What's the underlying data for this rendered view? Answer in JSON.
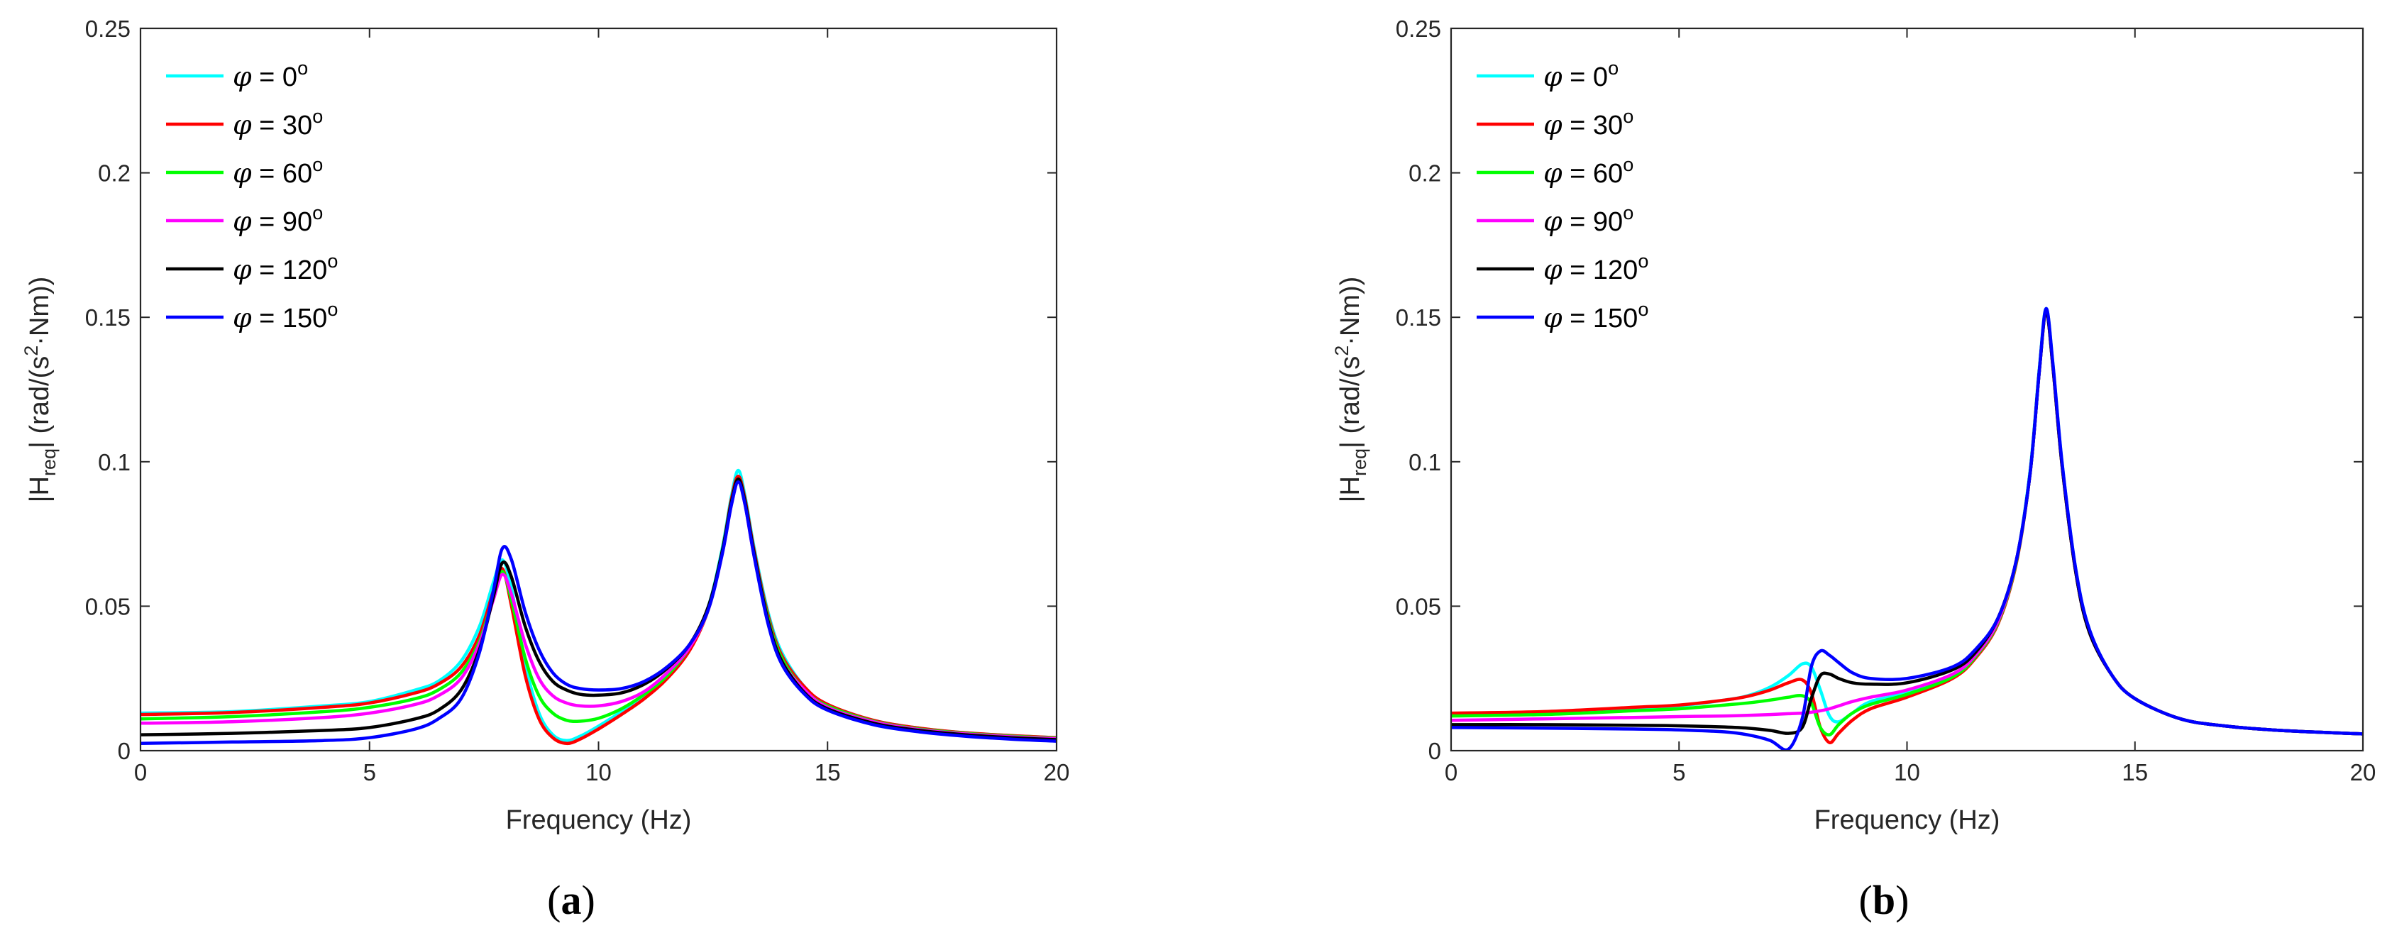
{
  "chart_data": [
    {
      "type": "line",
      "panel_label": {
        "open": "(",
        "letter": "a",
        "close": ")"
      },
      "xlabel": "Frequency (Hz)",
      "ylabel": {
        "prefix": "|H",
        "sub": "req",
        "mid": "| (rad/(s",
        "sup": "2",
        "suffix": "·Nm))"
      },
      "xlim": [
        0,
        20
      ],
      "ylim": [
        0,
        0.25
      ],
      "xticks": [
        0,
        5,
        10,
        15,
        20
      ],
      "yticks": [
        0,
        0.05,
        0.1,
        0.15,
        0.2,
        0.25
      ],
      "xtick_labels": [
        "0",
        "5",
        "10",
        "15",
        "20"
      ],
      "ytick_labels": [
        "0",
        "0.05",
        "0.1",
        "0.15",
        "0.2",
        "0.25"
      ],
      "legend_location": "top-left",
      "grid": false,
      "series": [
        {
          "name": "0",
          "symbol": "φ",
          "text": " = 0",
          "unit": "o",
          "color": "#00FFFF",
          "x": [
            0,
            2,
            4,
            5,
            6,
            6.5,
            7,
            7.4,
            7.7,
            7.9,
            8.1,
            8.4,
            8.7,
            9.0,
            9.3,
            9.6,
            10,
            10.5,
            11,
            11.5,
            12,
            12.4,
            12.7,
            12.9,
            13.05,
            13.2,
            13.4,
            13.7,
            14,
            14.5,
            15,
            16,
            17,
            18,
            19,
            20
          ],
          "y": [
            0.013,
            0.0135,
            0.0155,
            0.017,
            0.021,
            0.024,
            0.031,
            0.043,
            0.058,
            0.066,
            0.056,
            0.03,
            0.013,
            0.0055,
            0.0035,
            0.005,
            0.0085,
            0.0135,
            0.019,
            0.026,
            0.036,
            0.05,
            0.07,
            0.088,
            0.097,
            0.088,
            0.07,
            0.048,
            0.034,
            0.022,
            0.016,
            0.0105,
            0.0078,
            0.0062,
            0.0052,
            0.0045
          ]
        },
        {
          "name": "30",
          "symbol": "φ",
          "text": " = 30",
          "unit": "o",
          "color": "#FF0000",
          "x": [
            0,
            2,
            4,
            5,
            6,
            6.5,
            7,
            7.4,
            7.7,
            7.9,
            8.1,
            8.4,
            8.7,
            9.0,
            9.3,
            9.6,
            10,
            10.5,
            11,
            11.5,
            12,
            12.4,
            12.7,
            12.9,
            13.05,
            13.2,
            13.4,
            13.7,
            14,
            14.5,
            15,
            16,
            17,
            18,
            19,
            20
          ],
          "y": [
            0.0125,
            0.0132,
            0.015,
            0.0165,
            0.02,
            0.023,
            0.029,
            0.04,
            0.055,
            0.063,
            0.05,
            0.026,
            0.011,
            0.0045,
            0.0025,
            0.004,
            0.0075,
            0.0125,
            0.018,
            0.025,
            0.035,
            0.049,
            0.069,
            0.087,
            0.095,
            0.087,
            0.069,
            0.047,
            0.033,
            0.022,
            0.016,
            0.0105,
            0.0078,
            0.0062,
            0.0052,
            0.0045
          ]
        },
        {
          "name": "60",
          "symbol": "φ",
          "text": " = 60",
          "unit": "o",
          "color": "#00FF00",
          "x": [
            0,
            2,
            4,
            5,
            6,
            6.5,
            7,
            7.4,
            7.7,
            7.9,
            8.1,
            8.4,
            8.7,
            9.0,
            9.3,
            9.6,
            10,
            10.5,
            11,
            11.5,
            12,
            12.4,
            12.7,
            12.9,
            13.05,
            13.2,
            13.4,
            13.7,
            14,
            14.5,
            15,
            16,
            17,
            18,
            19,
            20
          ],
          "y": [
            0.011,
            0.0118,
            0.0135,
            0.015,
            0.018,
            0.021,
            0.027,
            0.038,
            0.053,
            0.062,
            0.052,
            0.032,
            0.019,
            0.013,
            0.0105,
            0.0102,
            0.0112,
            0.0145,
            0.0195,
            0.026,
            0.036,
            0.049,
            0.069,
            0.086,
            0.094,
            0.086,
            0.068,
            0.046,
            0.032,
            0.021,
            0.0155,
            0.0102,
            0.0075,
            0.006,
            0.005,
            0.0043
          ]
        },
        {
          "name": "90",
          "symbol": "φ",
          "text": " = 90",
          "unit": "o",
          "color": "#FF00FF",
          "x": [
            0,
            2,
            4,
            5,
            6,
            6.5,
            7,
            7.4,
            7.7,
            7.9,
            8.1,
            8.4,
            8.7,
            9.0,
            9.3,
            9.6,
            10,
            10.5,
            11,
            11.5,
            12,
            12.4,
            12.7,
            12.9,
            13.05,
            13.2,
            13.4,
            13.7,
            14,
            14.5,
            15,
            16,
            17,
            18,
            19,
            20
          ],
          "y": [
            0.0095,
            0.01,
            0.0115,
            0.013,
            0.016,
            0.019,
            0.025,
            0.037,
            0.052,
            0.061,
            0.054,
            0.037,
            0.025,
            0.019,
            0.0165,
            0.0155,
            0.0155,
            0.017,
            0.0205,
            0.027,
            0.036,
            0.049,
            0.068,
            0.085,
            0.093,
            0.085,
            0.067,
            0.045,
            0.031,
            0.021,
            0.015,
            0.01,
            0.0073,
            0.0058,
            0.0048,
            0.0041
          ]
        },
        {
          "name": "120",
          "symbol": "φ",
          "text": " = 120",
          "unit": "o",
          "color": "#000000",
          "x": [
            0,
            2,
            4,
            5,
            6,
            6.5,
            7,
            7.4,
            7.7,
            7.9,
            8.1,
            8.4,
            8.7,
            9.0,
            9.3,
            9.6,
            10,
            10.5,
            11,
            11.5,
            12,
            12.4,
            12.7,
            12.9,
            13.05,
            13.2,
            13.4,
            13.7,
            14,
            14.5,
            15,
            16,
            17,
            18,
            19,
            20
          ],
          "y": [
            0.0055,
            0.006,
            0.007,
            0.008,
            0.011,
            0.014,
            0.021,
            0.035,
            0.053,
            0.065,
            0.06,
            0.043,
            0.031,
            0.024,
            0.021,
            0.0195,
            0.0192,
            0.02,
            0.023,
            0.0285,
            0.037,
            0.05,
            0.069,
            0.086,
            0.094,
            0.086,
            0.068,
            0.045,
            0.031,
            0.02,
            0.0145,
            0.0095,
            0.007,
            0.0055,
            0.0045,
            0.0038
          ]
        },
        {
          "name": "150",
          "symbol": "φ",
          "text": " = 150",
          "unit": "o",
          "color": "#0000FF",
          "x": [
            0,
            2,
            4,
            5,
            6,
            6.5,
            7,
            7.4,
            7.7,
            7.9,
            8.1,
            8.4,
            8.7,
            9.0,
            9.3,
            9.6,
            10,
            10.5,
            11,
            11.5,
            12,
            12.4,
            12.7,
            12.9,
            13.05,
            13.2,
            13.4,
            13.7,
            14,
            14.5,
            15,
            16,
            17,
            18,
            19,
            20
          ],
          "y": [
            0.0025,
            0.003,
            0.0035,
            0.0045,
            0.0075,
            0.011,
            0.018,
            0.034,
            0.055,
            0.07,
            0.066,
            0.048,
            0.035,
            0.027,
            0.023,
            0.0215,
            0.021,
            0.0215,
            0.024,
            0.029,
            0.037,
            0.049,
            0.068,
            0.085,
            0.093,
            0.085,
            0.067,
            0.044,
            0.03,
            0.0195,
            0.014,
            0.009,
            0.0065,
            0.005,
            0.004,
            0.0033
          ]
        }
      ]
    },
    {
      "type": "line",
      "panel_label": {
        "open": "(",
        "letter": "b",
        "close": ")"
      },
      "xlabel": "Frequency (Hz)",
      "ylabel": {
        "prefix": "|H",
        "sub": "req",
        "mid": "| (rad/(s",
        "sup": "2",
        "suffix": "·Nm))"
      },
      "xlim": [
        0,
        20
      ],
      "ylim": [
        0,
        0.25
      ],
      "xticks": [
        0,
        5,
        10,
        15,
        20
      ],
      "yticks": [
        0,
        0.05,
        0.1,
        0.15,
        0.2,
        0.25
      ],
      "xtick_labels": [
        "0",
        "5",
        "10",
        "15",
        "20"
      ],
      "ytick_labels": [
        "0",
        "0.05",
        "0.1",
        "0.15",
        "0.2",
        "0.25"
      ],
      "legend_location": "top-left",
      "grid": false,
      "series": [
        {
          "name": "0",
          "symbol": "φ",
          "text": " = 0",
          "unit": "o",
          "color": "#00FFFF",
          "x": [
            0,
            2,
            4,
            5,
            6,
            6.5,
            7,
            7.4,
            7.7,
            7.9,
            8.1,
            8.3,
            8.5,
            8.8,
            9.2,
            10,
            11,
            11.5,
            12,
            12.4,
            12.7,
            12.9,
            13.05,
            13.2,
            13.4,
            13.7,
            14,
            14.5,
            15,
            16,
            17,
            18,
            19,
            20
          ],
          "y": [
            0.0125,
            0.013,
            0.0145,
            0.0155,
            0.0175,
            0.019,
            0.022,
            0.026,
            0.03,
            0.029,
            0.021,
            0.012,
            0.01,
            0.013,
            0.017,
            0.02,
            0.026,
            0.033,
            0.045,
            0.066,
            0.097,
            0.132,
            0.153,
            0.134,
            0.1,
            0.063,
            0.042,
            0.026,
            0.018,
            0.011,
            0.0085,
            0.0072,
            0.0064,
            0.0058
          ]
        },
        {
          "name": "30",
          "symbol": "φ",
          "text": " = 30",
          "unit": "o",
          "color": "#FF0000",
          "x": [
            0,
            2,
            4,
            5,
            6,
            6.5,
            7,
            7.4,
            7.7,
            7.9,
            8.1,
            8.3,
            8.5,
            8.8,
            9.2,
            10,
            11,
            11.5,
            12,
            12.4,
            12.7,
            12.9,
            13.05,
            13.2,
            13.4,
            13.7,
            14,
            14.5,
            15,
            16,
            17,
            18,
            19,
            20
          ],
          "y": [
            0.013,
            0.0135,
            0.015,
            0.0158,
            0.0175,
            0.0188,
            0.021,
            0.0235,
            0.0245,
            0.02,
            0.008,
            0.0028,
            0.006,
            0.0105,
            0.0145,
            0.0185,
            0.025,
            0.032,
            0.044,
            0.065,
            0.096,
            0.131,
            0.152,
            0.133,
            0.099,
            0.062,
            0.041,
            0.026,
            0.018,
            0.011,
            0.0085,
            0.0072,
            0.0064,
            0.0058
          ]
        },
        {
          "name": "60",
          "symbol": "φ",
          "text": " = 60",
          "unit": "o",
          "color": "#00FF00",
          "x": [
            0,
            2,
            4,
            5,
            6,
            6.5,
            7,
            7.4,
            7.7,
            7.9,
            8.1,
            8.3,
            8.5,
            8.8,
            9.2,
            10,
            11,
            11.5,
            12,
            12.4,
            12.7,
            12.9,
            13.05,
            13.2,
            13.4,
            13.7,
            14,
            14.5,
            15,
            16,
            17,
            18,
            19,
            20
          ],
          "y": [
            0.012,
            0.0125,
            0.0138,
            0.0145,
            0.0158,
            0.0165,
            0.0175,
            0.0185,
            0.019,
            0.0165,
            0.008,
            0.0055,
            0.009,
            0.013,
            0.016,
            0.0195,
            0.0255,
            0.0325,
            0.0445,
            0.0655,
            0.096,
            0.131,
            0.152,
            0.133,
            0.099,
            0.062,
            0.041,
            0.026,
            0.018,
            0.011,
            0.0085,
            0.0072,
            0.0064,
            0.0058
          ]
        },
        {
          "name": "90",
          "symbol": "φ",
          "text": " = 90",
          "unit": "o",
          "color": "#FF00FF",
          "x": [
            0,
            2,
            4,
            5,
            6,
            6.5,
            7,
            7.4,
            7.7,
            7.9,
            8.1,
            8.3,
            8.5,
            8.8,
            9.2,
            10,
            11,
            11.5,
            12,
            12.4,
            12.7,
            12.9,
            13.05,
            13.2,
            13.4,
            13.7,
            14,
            14.5,
            15,
            16,
            17,
            18,
            19,
            20
          ],
          "y": [
            0.0105,
            0.011,
            0.0115,
            0.0118,
            0.012,
            0.0122,
            0.0125,
            0.0128,
            0.013,
            0.0133,
            0.0138,
            0.0145,
            0.0155,
            0.017,
            0.0185,
            0.021,
            0.0265,
            0.033,
            0.045,
            0.066,
            0.096,
            0.131,
            0.152,
            0.133,
            0.099,
            0.062,
            0.041,
            0.026,
            0.018,
            0.011,
            0.0085,
            0.0072,
            0.0064,
            0.0058
          ]
        },
        {
          "name": "120",
          "symbol": "φ",
          "text": " = 120",
          "unit": "o",
          "color": "#000000",
          "x": [
            0,
            2,
            4,
            5,
            6,
            6.5,
            7,
            7.4,
            7.7,
            7.9,
            8.1,
            8.3,
            8.5,
            8.8,
            9.2,
            10,
            11,
            11.5,
            12,
            12.4,
            12.7,
            12.9,
            13.05,
            13.2,
            13.4,
            13.7,
            14,
            14.5,
            15,
            16,
            17,
            18,
            19,
            20
          ],
          "y": [
            0.009,
            0.009,
            0.0088,
            0.0086,
            0.0082,
            0.0078,
            0.007,
            0.006,
            0.008,
            0.018,
            0.026,
            0.0265,
            0.025,
            0.0235,
            0.023,
            0.0235,
            0.028,
            0.034,
            0.046,
            0.066,
            0.096,
            0.131,
            0.152,
            0.133,
            0.099,
            0.062,
            0.041,
            0.026,
            0.018,
            0.011,
            0.0085,
            0.0072,
            0.0064,
            0.0058
          ]
        },
        {
          "name": "150",
          "symbol": "φ",
          "text": " = 150",
          "unit": "o",
          "color": "#0000FF",
          "x": [
            0,
            2,
            4,
            5,
            6,
            6.5,
            7,
            7.4,
            7.7,
            7.9,
            8.1,
            8.3,
            8.5,
            8.8,
            9.2,
            10,
            11,
            11.5,
            12,
            12.4,
            12.7,
            12.9,
            13.05,
            13.2,
            13.4,
            13.7,
            14,
            14.5,
            15,
            16,
            17,
            18,
            19,
            20
          ],
          "y": [
            0.008,
            0.0078,
            0.0075,
            0.0072,
            0.0065,
            0.0055,
            0.0035,
            0.0005,
            0.011,
            0.029,
            0.0345,
            0.033,
            0.0305,
            0.027,
            0.025,
            0.025,
            0.029,
            0.035,
            0.046,
            0.066,
            0.096,
            0.131,
            0.153,
            0.134,
            0.1,
            0.063,
            0.042,
            0.026,
            0.018,
            0.011,
            0.0085,
            0.0072,
            0.0064,
            0.0058
          ]
        }
      ]
    }
  ]
}
